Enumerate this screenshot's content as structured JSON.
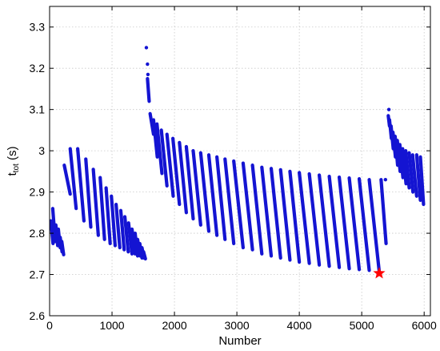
{
  "chart_data": {
    "type": "scatter",
    "xlabel": "Number",
    "ylabel_main": "t",
    "ylabel_sub": "tot",
    "ylabel_unit": " (s)",
    "xlim": [
      0,
      6100
    ],
    "ylim": [
      2.6,
      3.35
    ],
    "xticks": [
      0,
      1000,
      2000,
      3000,
      4000,
      5000,
      6000
    ],
    "yticks": [
      2.6,
      2.7,
      2.8,
      2.9,
      3.0,
      3.1,
      3.2,
      3.3
    ],
    "ytick_labels": [
      "2.6",
      "2.7",
      "2.8",
      "2.9",
      "3",
      "3.1",
      "3.2",
      "3.3"
    ],
    "grid": true,
    "series_color": "#1414d2",
    "marker_color": "#ff0000",
    "stripes": [
      {
        "x0": 20,
        "x1": 55,
        "y_top": 2.83,
        "y_bot": 2.775
      },
      {
        "x0": 50,
        "x1": 90,
        "y_top": 2.86,
        "y_bot": 2.78
      },
      {
        "x0": 100,
        "x1": 130,
        "y_top": 2.82,
        "y_bot": 2.77
      },
      {
        "x0": 140,
        "x1": 170,
        "y_top": 2.81,
        "y_bot": 2.765
      },
      {
        "x0": 170,
        "x1": 200,
        "y_top": 2.79,
        "y_bot": 2.755
      },
      {
        "x0": 195,
        "x1": 225,
        "y_top": 2.78,
        "y_bot": 2.748
      },
      {
        "x0": 235,
        "x1": 330,
        "y_top": 2.965,
        "y_bot": 2.895
      },
      {
        "x0": 330,
        "x1": 425,
        "y_top": 3.005,
        "y_bot": 2.86
      },
      {
        "x0": 450,
        "x1": 550,
        "y_top": 3.005,
        "y_bot": 2.83
      },
      {
        "x0": 580,
        "x1": 660,
        "y_top": 2.98,
        "y_bot": 2.815
      },
      {
        "x0": 700,
        "x1": 780,
        "y_top": 2.955,
        "y_bot": 2.795
      },
      {
        "x0": 810,
        "x1": 880,
        "y_top": 2.935,
        "y_bot": 2.785
      },
      {
        "x0": 905,
        "x1": 970,
        "y_top": 2.91,
        "y_bot": 2.775
      },
      {
        "x0": 990,
        "x1": 1050,
        "y_top": 2.89,
        "y_bot": 2.77
      },
      {
        "x0": 1065,
        "x1": 1125,
        "y_top": 2.87,
        "y_bot": 2.765
      },
      {
        "x0": 1140,
        "x1": 1195,
        "y_top": 2.855,
        "y_bot": 2.76
      },
      {
        "x0": 1205,
        "x1": 1260,
        "y_top": 2.84,
        "y_bot": 2.755
      },
      {
        "x0": 1265,
        "x1": 1320,
        "y_top": 2.825,
        "y_bot": 2.75
      },
      {
        "x0": 1320,
        "x1": 1370,
        "y_top": 2.81,
        "y_bot": 2.75
      },
      {
        "x0": 1370,
        "x1": 1410,
        "y_top": 2.8,
        "y_bot": 2.745
      },
      {
        "x0": 1410,
        "x1": 1450,
        "y_top": 2.785,
        "y_bot": 2.745
      },
      {
        "x0": 1445,
        "x1": 1480,
        "y_top": 2.775,
        "y_bot": 2.74
      },
      {
        "x0": 1480,
        "x1": 1510,
        "y_top": 2.765,
        "y_bot": 2.74
      },
      {
        "x0": 1505,
        "x1": 1535,
        "y_top": 2.755,
        "y_bot": 2.738
      },
      {
        "x0": 1568,
        "x1": 1595,
        "y_top": 3.175,
        "y_bot": 3.12
      },
      {
        "x0": 1610,
        "x1": 1665,
        "y_top": 3.09,
        "y_bot": 3.04
      },
      {
        "x0": 1665,
        "x1": 1725,
        "y_top": 3.075,
        "y_bot": 2.985
      },
      {
        "x0": 1720,
        "x1": 1800,
        "y_top": 3.065,
        "y_bot": 2.945
      },
      {
        "x0": 1790,
        "x1": 1880,
        "y_top": 3.05,
        "y_bot": 2.915
      },
      {
        "x0": 1880,
        "x1": 1980,
        "y_top": 3.04,
        "y_bot": 2.89
      },
      {
        "x0": 1975,
        "x1": 2080,
        "y_top": 3.03,
        "y_bot": 2.87
      },
      {
        "x0": 2080,
        "x1": 2190,
        "y_top": 3.02,
        "y_bot": 2.85
      },
      {
        "x0": 2190,
        "x1": 2300,
        "y_top": 3.01,
        "y_bot": 2.835
      },
      {
        "x0": 2300,
        "x1": 2420,
        "y_top": 3.0,
        "y_bot": 2.82
      },
      {
        "x0": 2420,
        "x1": 2550,
        "y_top": 2.995,
        "y_bot": 2.805
      },
      {
        "x0": 2550,
        "x1": 2680,
        "y_top": 2.99,
        "y_bot": 2.795
      },
      {
        "x0": 2680,
        "x1": 2810,
        "y_top": 2.985,
        "y_bot": 2.785
      },
      {
        "x0": 2810,
        "x1": 2950,
        "y_top": 2.98,
        "y_bot": 2.775
      },
      {
        "x0": 2950,
        "x1": 3100,
        "y_top": 2.975,
        "y_bot": 2.765
      },
      {
        "x0": 3100,
        "x1": 3250,
        "y_top": 2.97,
        "y_bot": 2.76
      },
      {
        "x0": 3250,
        "x1": 3400,
        "y_top": 2.965,
        "y_bot": 2.75
      },
      {
        "x0": 3400,
        "x1": 3550,
        "y_top": 2.96,
        "y_bot": 2.745
      },
      {
        "x0": 3550,
        "x1": 3700,
        "y_top": 2.957,
        "y_bot": 2.74
      },
      {
        "x0": 3700,
        "x1": 3850,
        "y_top": 2.954,
        "y_bot": 2.735
      },
      {
        "x0": 3850,
        "x1": 4000,
        "y_top": 2.95,
        "y_bot": 2.73
      },
      {
        "x0": 4000,
        "x1": 4160,
        "y_top": 2.947,
        "y_bot": 2.727
      },
      {
        "x0": 4160,
        "x1": 4320,
        "y_top": 2.944,
        "y_bot": 2.723
      },
      {
        "x0": 4320,
        "x1": 4480,
        "y_top": 2.941,
        "y_bot": 2.72
      },
      {
        "x0": 4480,
        "x1": 4640,
        "y_top": 2.938,
        "y_bot": 2.717
      },
      {
        "x0": 4640,
        "x1": 4800,
        "y_top": 2.936,
        "y_bot": 2.714
      },
      {
        "x0": 4800,
        "x1": 4960,
        "y_top": 2.934,
        "y_bot": 2.712
      },
      {
        "x0": 4960,
        "x1": 5120,
        "y_top": 2.932,
        "y_bot": 2.71
      },
      {
        "x0": 5120,
        "x1": 5280,
        "y_top": 2.93,
        "y_bot": 2.708
      },
      {
        "x0": 5310,
        "x1": 5390,
        "y_top": 2.93,
        "y_bot": 2.775
      },
      {
        "x0": 5425,
        "x1": 5445,
        "y_top": 3.085,
        "y_bot": 3.06
      },
      {
        "x0": 5445,
        "x1": 5475,
        "y_top": 3.075,
        "y_bot": 3.03
      },
      {
        "x0": 5470,
        "x1": 5505,
        "y_top": 3.06,
        "y_bot": 3.005
      },
      {
        "x0": 5500,
        "x1": 5540,
        "y_top": 3.045,
        "y_bot": 2.985
      },
      {
        "x0": 5535,
        "x1": 5575,
        "y_top": 3.035,
        "y_bot": 2.965
      },
      {
        "x0": 5570,
        "x1": 5615,
        "y_top": 3.025,
        "y_bot": 2.95
      },
      {
        "x0": 5610,
        "x1": 5660,
        "y_top": 3.015,
        "y_bot": 2.935
      },
      {
        "x0": 5655,
        "x1": 5710,
        "y_top": 3.005,
        "y_bot": 2.92
      },
      {
        "x0": 5705,
        "x1": 5760,
        "y_top": 3.0,
        "y_bot": 2.91
      },
      {
        "x0": 5760,
        "x1": 5820,
        "y_top": 2.995,
        "y_bot": 2.9
      },
      {
        "x0": 5815,
        "x1": 5880,
        "y_top": 2.99,
        "y_bot": 2.89
      },
      {
        "x0": 5880,
        "x1": 5940,
        "y_top": 2.99,
        "y_bot": 2.88
      },
      {
        "x0": 5940,
        "x1": 5990,
        "y_top": 2.985,
        "y_bot": 2.87
      }
    ],
    "isolated_points": [
      {
        "x": 1550,
        "y": 3.25
      },
      {
        "x": 1568,
        "y": 3.21
      },
      {
        "x": 1575,
        "y": 3.185
      },
      {
        "x": 5435,
        "y": 3.1
      },
      {
        "x": 5380,
        "y": 2.93
      }
    ],
    "highlight_point": {
      "x": 5280,
      "y": 2.703,
      "marker": "star"
    }
  }
}
